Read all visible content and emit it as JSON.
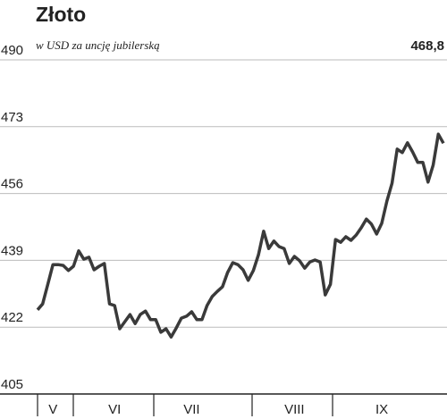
{
  "chart_data": {
    "type": "line",
    "title": "Złoto",
    "subtitle": "w USD za uncję jubilerską",
    "color": "#3a3a3a",
    "categories": [
      null,
      null,
      null,
      "V",
      null,
      null,
      null,
      null,
      null,
      null,
      null,
      null,
      null,
      null,
      null,
      "VI",
      null,
      null,
      null,
      null,
      null,
      null,
      null,
      null,
      null,
      null,
      null,
      null,
      null,
      null,
      "VII",
      null,
      null,
      null,
      null,
      null,
      null,
      null,
      null,
      null,
      null,
      null,
      null,
      null,
      null,
      null,
      null,
      null,
      null,
      null,
      "VIII",
      null,
      null,
      null,
      null,
      null,
      null,
      null,
      null,
      null,
      null,
      null,
      null,
      null,
      null,
      null,
      null,
      "IX",
      null,
      null,
      null,
      null,
      null,
      null,
      null,
      null,
      null,
      null,
      null,
      null
    ],
    "values": [
      426.4,
      427.9,
      432.9,
      437.9,
      437.9,
      437.7,
      436.4,
      437.5,
      441.4,
      439.3,
      439.8,
      436.6,
      437.5,
      438.2,
      427.9,
      427.5,
      421.6,
      423.4,
      425.2,
      422.9,
      425.2,
      426.1,
      423.9,
      423.9,
      420.7,
      421.6,
      419.5,
      421.8,
      424.3,
      424.8,
      425.9,
      423.9,
      423.9,
      427.5,
      429.8,
      431.1,
      432.3,
      435.9,
      438.4,
      437.9,
      436.6,
      433.9,
      436.4,
      440.4,
      446.4,
      442.0,
      443.9,
      442.5,
      442.0,
      438.2,
      440.0,
      438.9,
      437.0,
      438.6,
      439.1,
      438.6,
      430.2,
      432.9,
      444.3,
      443.6,
      445.0,
      444.1,
      445.4,
      447.3,
      449.5,
      448.2,
      445.7,
      448.4,
      454.1,
      458.6,
      467.3,
      466.4,
      468.9,
      466.6,
      463.9,
      463.9,
      458.9,
      463.2,
      471.1,
      468.8
    ],
    "value_labels": [
      null,
      null,
      null,
      null,
      null,
      null,
      null,
      null,
      null,
      null,
      null,
      null,
      null,
      null,
      null,
      null,
      null,
      null,
      null,
      null,
      null,
      null,
      null,
      null,
      null,
      null,
      null,
      null,
      null,
      null,
      null,
      null,
      null,
      null,
      null,
      null,
      null,
      null,
      null,
      null,
      null,
      null,
      null,
      null,
      null,
      null,
      null,
      null,
      null,
      null,
      null,
      null,
      null,
      null,
      null,
      null,
      null,
      null,
      null,
      null,
      null,
      null,
      null,
      null,
      null,
      null,
      null,
      null,
      null,
      null,
      null,
      null,
      null,
      null,
      null,
      null,
      null,
      null,
      null,
      "468,8"
    ],
    "ylim": [
      405,
      490
    ],
    "yticks": [
      405,
      422,
      439,
      456,
      473,
      490
    ],
    "grid": true
  }
}
